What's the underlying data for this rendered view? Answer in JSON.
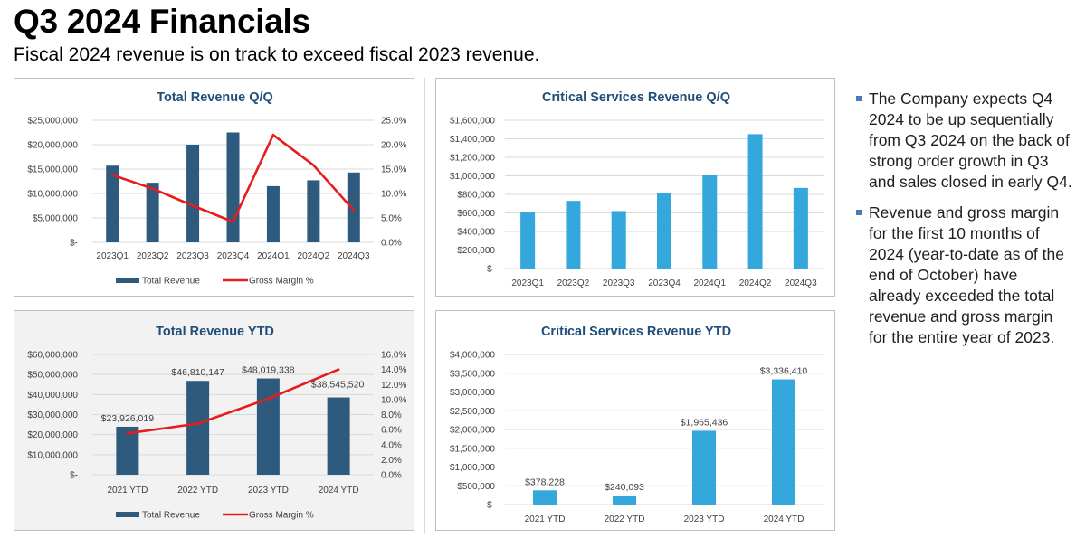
{
  "page": {
    "title": "Q3 2024 Financials",
    "subtitle": "Fiscal 2024 revenue is on track to exceed fiscal 2023 revenue."
  },
  "bullets": [
    "The Company expects Q4 2024 to be up sequentially from Q3 2024 on the back of strong order growth in Q3 and sales closed in early Q4.",
    "Revenue and gross margin for the first 10 months of 2024 (year-to-date as of the end of October) have already exceeded the total revenue and gross margin for the entire year of 2023."
  ],
  "colors": {
    "revenue_bar": "#2e5a7e",
    "critical_bar": "#34a8dd",
    "gross_margin_line": "#e81c1c",
    "chart_title": "#1f4e79",
    "grid": "#d9d9d9",
    "axis_text": "#404040"
  },
  "chart_data": [
    {
      "id": "total-revenue-qq",
      "type": "bar",
      "title": "Total Revenue Q/Q",
      "categories": [
        "2023Q1",
        "2023Q2",
        "2023Q3",
        "2023Q4",
        "2024Q1",
        "2024Q2",
        "2024Q3"
      ],
      "series": [
        {
          "name": "Total Revenue",
          "type": "bar",
          "axis": "left",
          "values": [
            15700000,
            12200000,
            20000000,
            22500000,
            11500000,
            12700000,
            14300000
          ]
        },
        {
          "name": "Gross Margin %",
          "type": "line",
          "axis": "right",
          "values": [
            13.8,
            11.0,
            7.5,
            4.2,
            22.0,
            15.8,
            6.6
          ]
        }
      ],
      "y_left": {
        "min": 0,
        "max": 25000000,
        "ticks": [
          "$-",
          "$5,000,000",
          "$10,000,000",
          "$15,000,000",
          "$20,000,000",
          "$25,000,000"
        ]
      },
      "y_right": {
        "min": 0,
        "max": 25,
        "ticks": [
          "0.0%",
          "5.0%",
          "10.0%",
          "15.0%",
          "20.0%",
          "25.0%"
        ]
      },
      "grid": true,
      "legend": "bottom"
    },
    {
      "id": "critical-services-qq",
      "type": "bar",
      "title": "Critical Services Revenue Q/Q",
      "categories": [
        "2023Q1",
        "2023Q2",
        "2023Q3",
        "2023Q4",
        "2024Q1",
        "2024Q2",
        "2024Q3"
      ],
      "series": [
        {
          "type": "bar",
          "axis": "left",
          "values": [
            610000,
            730000,
            620000,
            820000,
            1010000,
            1450000,
            870000
          ]
        }
      ],
      "y_left": {
        "min": 0,
        "max": 1600000,
        "ticks": [
          "$-",
          "$200,000",
          "$400,000",
          "$600,000",
          "$800,000",
          "$1,000,000",
          "$1,200,000",
          "$1,400,000",
          "$1,600,000"
        ]
      },
      "grid": true,
      "legend": "none"
    },
    {
      "id": "total-revenue-ytd",
      "type": "bar",
      "title": "Total Revenue YTD",
      "categories": [
        "2021 YTD",
        "2022 YTD",
        "2023 YTD",
        "2024 YTD"
      ],
      "series": [
        {
          "name": "Total Revenue",
          "type": "bar",
          "axis": "left",
          "values": [
            23926019,
            46810147,
            48019338,
            38545520
          ],
          "labels": [
            "$23,926,019",
            "$46,810,147",
            "$48,019,338",
            "$38,545,520"
          ]
        },
        {
          "name": "Gross Margin %",
          "type": "line",
          "axis": "right",
          "values": [
            5.5,
            6.8,
            10.1,
            14.0
          ]
        }
      ],
      "y_left": {
        "min": 0,
        "max": 60000000,
        "ticks": [
          "$-",
          "$10,000,000",
          "$20,000,000",
          "$30,000,000",
          "$40,000,000",
          "$50,000,000",
          "$60,000,000"
        ]
      },
      "y_right": {
        "min": 0,
        "max": 16,
        "ticks": [
          "0.0%",
          "2.0%",
          "4.0%",
          "6.0%",
          "8.0%",
          "10.0%",
          "12.0%",
          "14.0%",
          "16.0%"
        ]
      },
      "grid": true,
      "legend": "bottom"
    },
    {
      "id": "critical-services-ytd",
      "type": "bar",
      "title": "Critical Services Revenue YTD",
      "categories": [
        "2021 YTD",
        "2022 YTD",
        "2023 YTD",
        "2024 YTD"
      ],
      "series": [
        {
          "type": "bar",
          "axis": "left",
          "values": [
            378228,
            240093,
            1965436,
            3336410
          ],
          "labels": [
            "$378,228",
            "$240,093",
            "$1,965,436",
            "$3,336,410"
          ]
        }
      ],
      "y_left": {
        "min": 0,
        "max": 4000000,
        "ticks": [
          "$-",
          "$500,000",
          "$1,000,000",
          "$1,500,000",
          "$2,000,000",
          "$2,500,000",
          "$3,000,000",
          "$3,500,000",
          "$4,000,000"
        ]
      },
      "grid": true,
      "legend": "none"
    }
  ]
}
